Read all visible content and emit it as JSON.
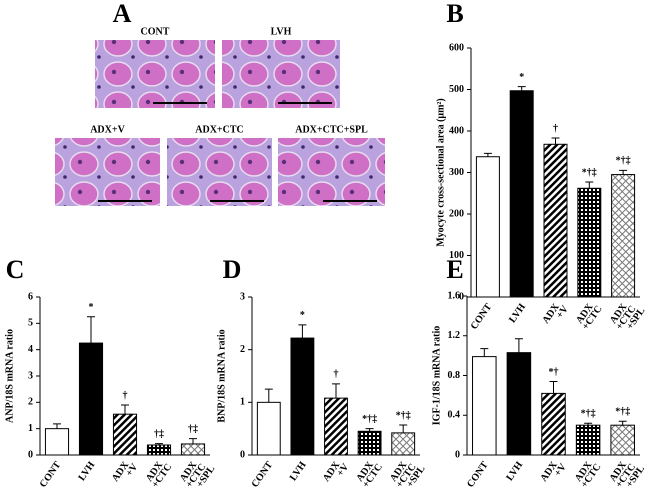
{
  "panel_a": {
    "label": "A",
    "images": [
      "CONT",
      "LVH",
      "ADX+V",
      "ADX+CTC",
      "ADX+CTC+SPL"
    ]
  },
  "chart_data": [
    {
      "type": "bar",
      "panel": "B",
      "ylabel": "Myocyte cross-sectional area (μm²)",
      "categories": [
        [
          "CONT"
        ],
        [
          "LVH"
        ],
        [
          "ADX",
          "+V"
        ],
        [
          "ADX",
          "+CTC"
        ],
        [
          "ADX",
          "+CTC",
          "+SPL"
        ]
      ],
      "values": [
        338,
        497,
        368,
        262,
        295
      ],
      "errors": [
        8,
        10,
        15,
        15,
        10
      ],
      "annotations": [
        null,
        "*",
        "†",
        "*†‡",
        "*†‡"
      ],
      "fills": [
        "white",
        "black",
        "hatch",
        "grid",
        "cross"
      ],
      "ylim": [
        0,
        600
      ],
      "yticks": [
        0,
        100,
        200,
        300,
        400,
        500,
        600
      ]
    },
    {
      "type": "bar",
      "panel": "C",
      "ylabel": "ANP/18S mRNA ratio",
      "categories": [
        [
          "CONT"
        ],
        [
          "LVH"
        ],
        [
          "ADX",
          "+V"
        ],
        [
          "ADX",
          "+CTC"
        ],
        [
          "ADX",
          "+CTC",
          "+SPL"
        ]
      ],
      "values": [
        1.0,
        4.25,
        1.55,
        0.38,
        0.42
      ],
      "errors": [
        0.18,
        1.0,
        0.35,
        0.05,
        0.2
      ],
      "annotations": [
        null,
        "*",
        "†",
        "†‡",
        "†‡"
      ],
      "fills": [
        "white",
        "black",
        "hatch",
        "grid",
        "cross"
      ],
      "ylim": [
        0,
        6
      ],
      "yticks": [
        0,
        1,
        2,
        3,
        4,
        5,
        6
      ]
    },
    {
      "type": "bar",
      "panel": "D",
      "ylabel": "BNP/18S mRNA ratio",
      "categories": [
        [
          "CONT"
        ],
        [
          "LVH"
        ],
        [
          "ADX",
          "+V"
        ],
        [
          "ADX",
          "+CTC"
        ],
        [
          "ADX",
          "+CTC",
          "+SPL"
        ]
      ],
      "values": [
        1.0,
        2.22,
        1.08,
        0.45,
        0.42
      ],
      "errors": [
        0.25,
        0.25,
        0.27,
        0.05,
        0.15
      ],
      "annotations": [
        null,
        "*",
        "†",
        "*†‡",
        "*†‡"
      ],
      "fills": [
        "white",
        "black",
        "hatch",
        "grid",
        "cross"
      ],
      "ylim": [
        0,
        3
      ],
      "yticks": [
        0,
        1,
        2,
        3
      ]
    },
    {
      "type": "bar",
      "panel": "E",
      "ylabel": "IGF-1/18S mRNA ratio",
      "categories": [
        [
          "CONT"
        ],
        [
          "LVH"
        ],
        [
          "ADX",
          "+V"
        ],
        [
          "ADX",
          "+CTC"
        ],
        [
          "ADX",
          "+CTC",
          "+SPL"
        ]
      ],
      "values": [
        0.99,
        1.03,
        0.62,
        0.3,
        0.3
      ],
      "errors": [
        0.08,
        0.14,
        0.12,
        0.02,
        0.04
      ],
      "annotations": [
        null,
        null,
        "*†",
        "*†‡",
        "*†‡"
      ],
      "fills": [
        "white",
        "black",
        "hatch",
        "grid",
        "cross"
      ],
      "ylim": [
        0,
        1.6
      ],
      "yticks": [
        0,
        0.4,
        0.8,
        1.2,
        1.6
      ]
    }
  ]
}
